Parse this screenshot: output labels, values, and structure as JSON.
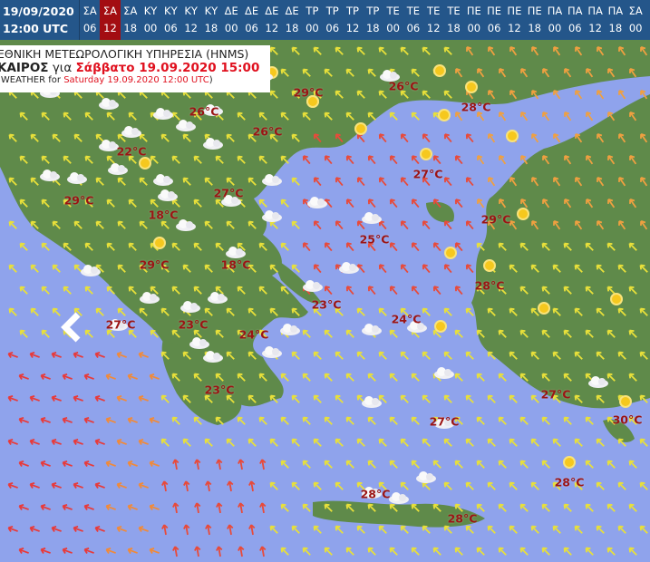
{
  "header": {
    "date": "19/09/2020",
    "time": "12:00 UTC",
    "timesteps": [
      {
        "day": "ΣΑ",
        "hour": "06"
      },
      {
        "day": "ΣΑ",
        "hour": "12",
        "selected": true
      },
      {
        "day": "ΣΑ",
        "hour": "18"
      },
      {
        "day": "ΚΥ",
        "hour": "00"
      },
      {
        "day": "ΚΥ",
        "hour": "06"
      },
      {
        "day": "ΚΥ",
        "hour": "12"
      },
      {
        "day": "ΚΥ",
        "hour": "18"
      },
      {
        "day": "ΔΕ",
        "hour": "00"
      },
      {
        "day": "ΔΕ",
        "hour": "06"
      },
      {
        "day": "ΔΕ",
        "hour": "12"
      },
      {
        "day": "ΔΕ",
        "hour": "18"
      },
      {
        "day": "ΤΡ",
        "hour": "00"
      },
      {
        "day": "ΤΡ",
        "hour": "06"
      },
      {
        "day": "ΤΡ",
        "hour": "12"
      },
      {
        "day": "ΤΡ",
        "hour": "18"
      },
      {
        "day": "ΤΕ",
        "hour": "00"
      },
      {
        "day": "ΤΕ",
        "hour": "06"
      },
      {
        "day": "ΤΕ",
        "hour": "12"
      },
      {
        "day": "ΤΕ",
        "hour": "18"
      },
      {
        "day": "ΠΕ",
        "hour": "00"
      },
      {
        "day": "ΠΕ",
        "hour": "06"
      },
      {
        "day": "ΠΕ",
        "hour": "12"
      },
      {
        "day": "ΠΕ",
        "hour": "18"
      },
      {
        "day": "ΠΑ",
        "hour": "00"
      },
      {
        "day": "ΠΑ",
        "hour": "06"
      },
      {
        "day": "ΠΑ",
        "hour": "12"
      },
      {
        "day": "ΠΑ",
        "hour": "18"
      },
      {
        "day": "ΣΑ",
        "hour": "00"
      }
    ]
  },
  "title": {
    "line1": "ΕΘΝΙΚΗ ΜΕΤΕΩΡΟΛΟΓΙΚΗ ΥΠΗΡΕΣΙΑ (HNMS)",
    "line2_bold": "ΚΑΙΡΟΣ",
    "line2_mid": " για ",
    "line2_red": "Σάββατο 19.09.2020 15:00",
    "line3_pre": "(WEATHER for ",
    "line3_red": "Saturday 19.09.2020 12:00 UTC",
    "line3_post": ")"
  },
  "temperatures": [
    "29°C",
    "26°C",
    "26°C",
    "28°C",
    "26°C",
    "22°C",
    "27°C",
    "27°C",
    "29°C",
    "18°C",
    "29°C",
    "25°C",
    "29°C",
    "18°C",
    "28°C",
    "23°C",
    "24°C",
    "27°C",
    "23°C",
    "24°C",
    "23°C",
    "27°C",
    "27°C",
    "30°C",
    "28°C",
    "28°C",
    "28°C"
  ],
  "colors": {
    "sea": "#8fa3ec",
    "land": "#5f8a4a",
    "header": "#24568a",
    "selected": "#a30d12",
    "temp": "#9b1414"
  },
  "nav": {
    "prev_icon": "chevron-left-icon"
  }
}
